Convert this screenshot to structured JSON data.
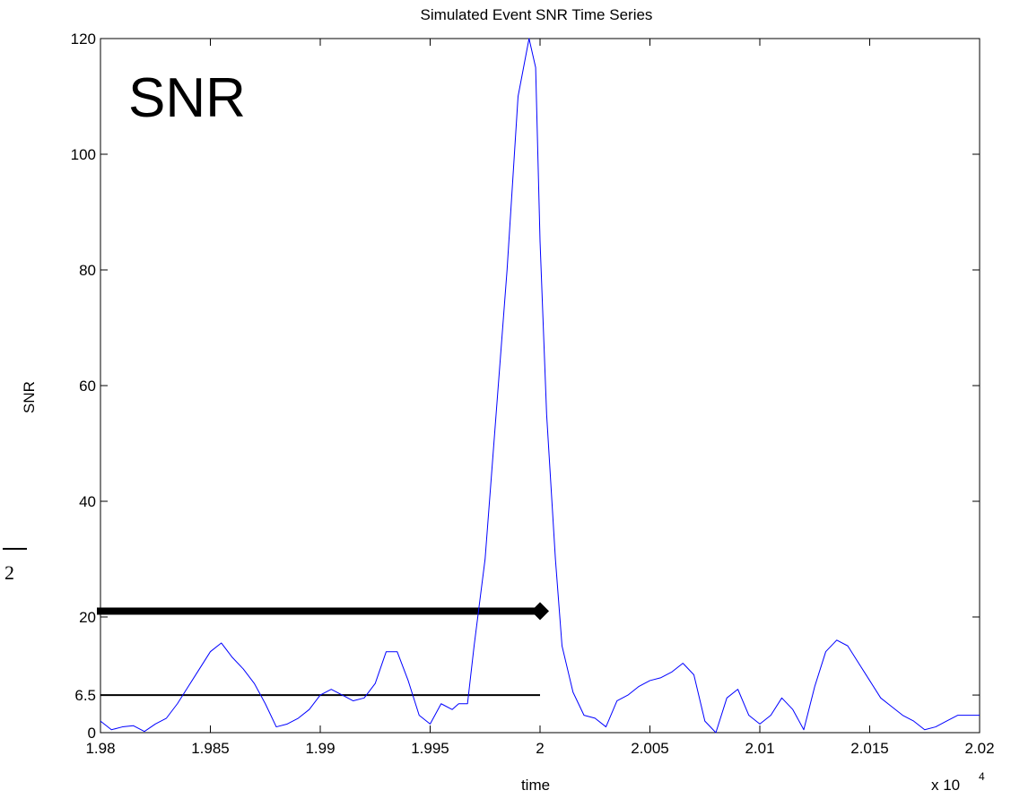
{
  "chart_data": {
    "type": "line",
    "title": "Simulated Event SNR Time Series",
    "xlabel": "time",
    "ylabel": "SNR",
    "x_multiplier": "x 10",
    "x_multiplier_exponent": "4",
    "xlim": [
      1.98,
      2.02
    ],
    "ylim": [
      0,
      120
    ],
    "xticks": [
      1.98,
      1.985,
      1.99,
      1.995,
      2.0,
      2.005,
      2.01,
      2.015,
      2.02
    ],
    "xtick_labels": [
      "1.98",
      "1.985",
      "1.99",
      "1.995",
      "2",
      "2.005",
      "2.01",
      "2.015",
      "2.02"
    ],
    "yticks": [
      0,
      6.5,
      20,
      40,
      60,
      80,
      100,
      120
    ],
    "ytick_labels": [
      "0",
      "6.5",
      "20",
      "40",
      "60",
      "80",
      "100",
      "120"
    ],
    "grid": false,
    "inset_label": "SNR",
    "side_annotation": "2",
    "series": [
      {
        "color": "#0000ff",
        "x": [
          1.98,
          1.9805,
          1.981,
          1.9815,
          1.982,
          1.9825,
          1.983,
          1.9835,
          1.984,
          1.9845,
          1.985,
          1.9855,
          1.986,
          1.9865,
          1.987,
          1.9875,
          1.988,
          1.9885,
          1.989,
          1.9895,
          1.99,
          1.9905,
          1.991,
          1.9915,
          1.992,
          1.9925,
          1.993,
          1.9935,
          1.994,
          1.9945,
          1.995,
          1.9955,
          1.996,
          1.9963,
          1.9967,
          1.997,
          1.9975,
          1.998,
          1.9985,
          1.999,
          1.9995,
          1.9998,
          2.0,
          2.0003,
          2.0007,
          2.001,
          2.0015,
          2.002,
          2.0025,
          2.003,
          2.0035,
          2.004,
          2.0045,
          2.005,
          2.0055,
          2.006,
          2.0065,
          2.007,
          2.0075,
          2.008,
          2.0085,
          2.009,
          2.0095,
          2.01,
          2.0105,
          2.011,
          2.0115,
          2.012,
          2.0125,
          2.013,
          2.0135,
          2.014,
          2.0145,
          2.015,
          2.0155,
          2.016,
          2.0165,
          2.017,
          2.0175,
          2.018,
          2.0185,
          2.019,
          2.0195,
          2.02
        ],
        "y": [
          2,
          0.5,
          1,
          1.2,
          0.2,
          1.5,
          2.5,
          5,
          8,
          11,
          14,
          15.5,
          13,
          11,
          8.5,
          5,
          1,
          1.5,
          2.5,
          4,
          6.5,
          7.5,
          6.5,
          5.5,
          6,
          8.5,
          14,
          14,
          9,
          3,
          1.5,
          5,
          4,
          5,
          5,
          15,
          30,
          55,
          80,
          110,
          120,
          115,
          85,
          55,
          30,
          15,
          7,
          3,
          2.5,
          1,
          5.5,
          6.5,
          8,
          9,
          9.5,
          10.5,
          12,
          10,
          2,
          0,
          6,
          7.5,
          3,
          1.5,
          3,
          6,
          4,
          0.5,
          8,
          14,
          16,
          15,
          12,
          9,
          6,
          4.5,
          3,
          2,
          0.5,
          1,
          2,
          3,
          3,
          3
        ]
      }
    ],
    "annotations": [
      {
        "type": "hline",
        "y": 6.5,
        "x_start": 1.98,
        "x_end": 2.0,
        "color": "#000000"
      },
      {
        "type": "arrow",
        "y": 21,
        "x_start": 1.98,
        "x_end": 2.0,
        "color": "#000000"
      }
    ]
  }
}
